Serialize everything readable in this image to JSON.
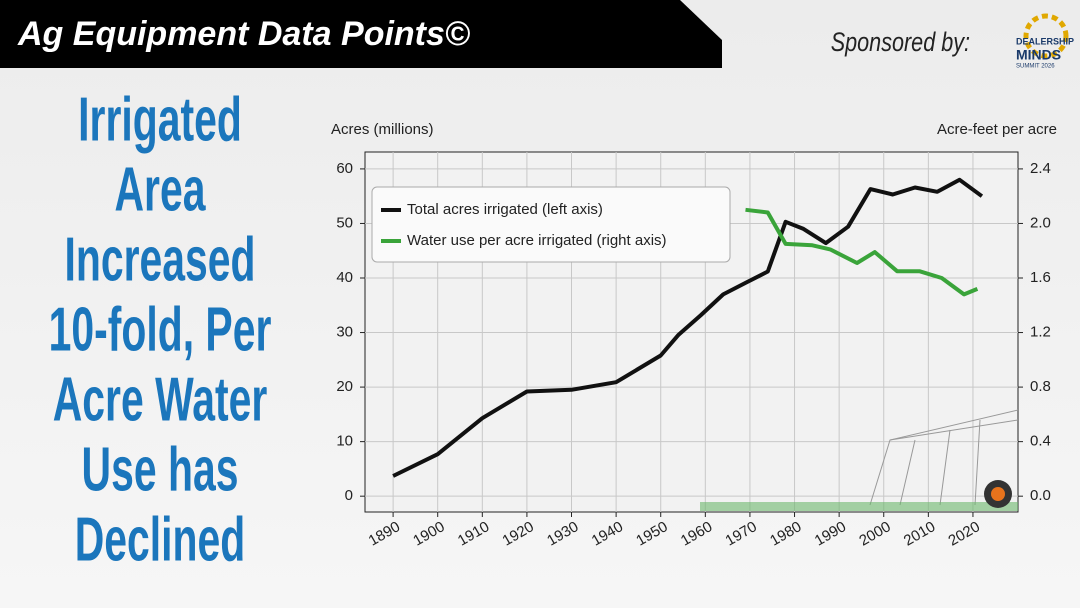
{
  "header": {
    "title": "Ag Equipment Data Points©",
    "sponsor": "Sponsored by:",
    "sponsor_logo": [
      "DEALERSHIP",
      "MINDS",
      "SUMMIT 2026"
    ]
  },
  "headline": [
    "Irrigated",
    "Area",
    "Increased",
    "10-fold, Per",
    "Acre Water",
    "Use has",
    "Declined"
  ],
  "chart_data": {
    "type": "line",
    "y_label": "Acres (millions)",
    "y2_label": "Acre-feet per acre",
    "xlim": [
      1883.7,
      2030.1
    ],
    "xticks": [
      1890,
      1900,
      1910,
      1920,
      1930,
      1940,
      1950,
      1960,
      1970,
      1980,
      1990,
      2000,
      2010,
      2020
    ],
    "ylim": [
      -2.9,
      63.1
    ],
    "yticks": [
      0,
      10,
      20,
      30,
      40,
      50,
      60
    ],
    "y2lim": [
      -0.116,
      2.524
    ],
    "y2ticks": [
      {
        "value": 0,
        "label": "0.0"
      },
      0.4,
      0.8,
      1.2,
      1.6,
      {
        "value": 2,
        "label": "2.0"
      },
      2.4
    ],
    "grid": true,
    "legend": "upper left",
    "series": [
      {
        "name": "Total acres irrigated (left axis)",
        "color": "#111111",
        "axis": "y",
        "x": [
          1890,
          1900,
          1910,
          1920,
          1930,
          1940,
          1950,
          1954,
          1959,
          1964,
          1969,
          1974,
          1978,
          1982,
          1987,
          1992,
          1997,
          2002,
          2007,
          2012,
          2017,
          2022
        ],
        "values": [
          3.7,
          7.7,
          14.3,
          19.2,
          19.5,
          20.9,
          25.8,
          29.6,
          33.2,
          37.0,
          39.1,
          41.2,
          50.3,
          49.0,
          46.4,
          49.4,
          56.3,
          55.3,
          56.6,
          55.8,
          58.0,
          55.0
        ]
      },
      {
        "name": "Water use per acre irrigated (right axis)",
        "color": "#3aa43a",
        "axis": "y2",
        "x": [
          1969,
          1974,
          1978,
          1984,
          1988,
          1994,
          1998,
          2003,
          2008,
          2013,
          2018,
          2021
        ],
        "values": [
          2.1,
          2.08,
          1.85,
          1.84,
          1.81,
          1.71,
          1.79,
          1.65,
          1.65,
          1.6,
          1.48,
          1.52
        ]
      }
    ]
  }
}
